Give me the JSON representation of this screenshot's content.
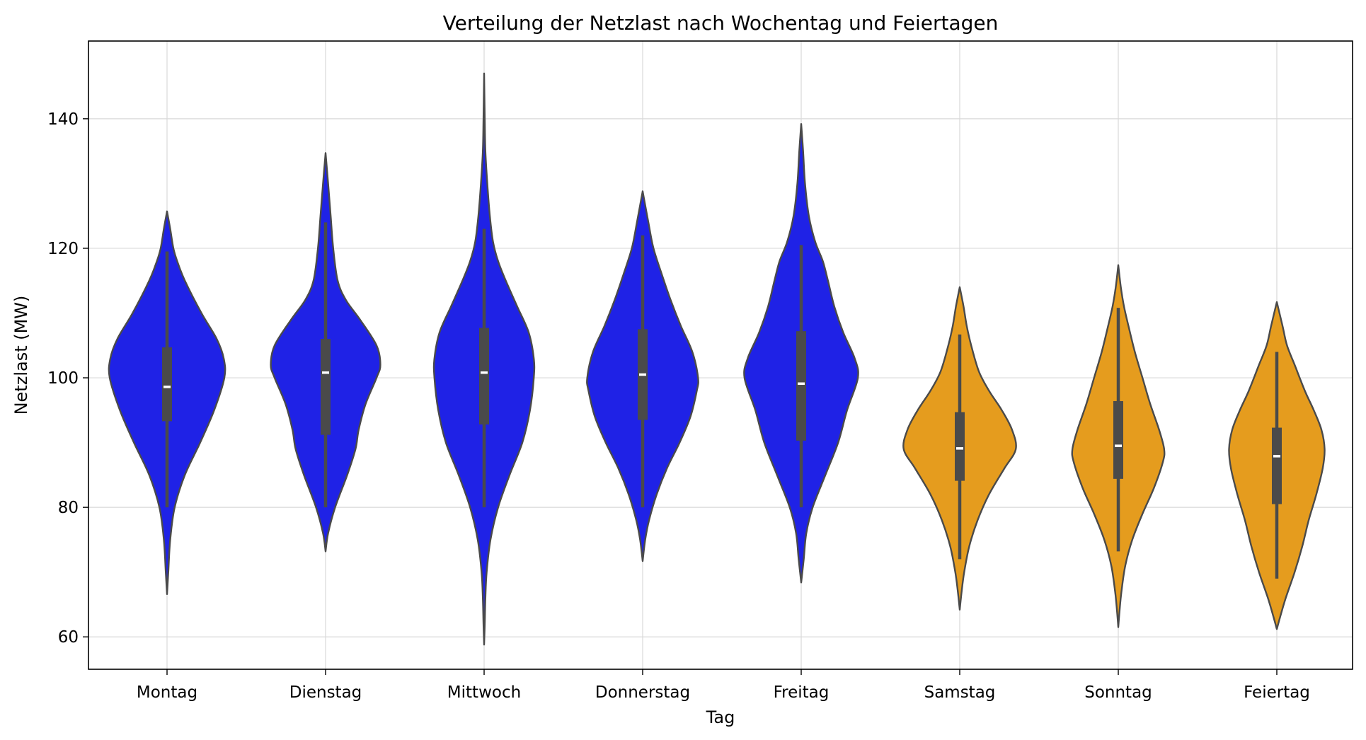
{
  "chart_data": {
    "type": "violin",
    "title": "Verteilung der Netzlast nach Wochentag und Feiertagen",
    "xlabel": "Tag",
    "ylabel": "Netzlast (MW)",
    "ylim": [
      55,
      152
    ],
    "yticks": [
      60,
      80,
      100,
      120,
      140
    ],
    "grid": true,
    "colors": {
      "weekday": "#1f22e6",
      "weekend": "#e59c1e",
      "inner": "#4a4a4a",
      "median": "#ffffff",
      "outline": "#4a4a4a"
    },
    "categories": [
      "Montag",
      "Dienstag",
      "Mittwoch",
      "Donnerstag",
      "Freitag",
      "Samstag",
      "Sonntag",
      "Feiertag"
    ],
    "violins": [
      {
        "name": "Montag",
        "group": "weekday",
        "min": 66.6,
        "max": 125.7,
        "q1": 93.3,
        "median": 98.6,
        "q3": 104.7,
        "whisker_low": 80.0,
        "whisker_high": 119.5,
        "profile": [
          [
            66.6,
            0
          ],
          [
            70,
            2
          ],
          [
            75,
            5
          ],
          [
            80,
            12
          ],
          [
            85,
            28
          ],
          [
            90,
            52
          ],
          [
            95,
            74
          ],
          [
            100,
            90
          ],
          [
            103,
            89
          ],
          [
            106,
            78
          ],
          [
            110,
            54
          ],
          [
            115,
            28
          ],
          [
            118,
            16
          ],
          [
            120,
            10
          ],
          [
            123,
            5
          ],
          [
            125.7,
            0
          ]
        ]
      },
      {
        "name": "Dienstag",
        "group": "weekday",
        "min": 73.2,
        "max": 134.7,
        "q1": 91.2,
        "median": 100.8,
        "q3": 106.0,
        "whisker_low": 80.0,
        "whisker_high": 124.0,
        "profile": [
          [
            73.2,
            0
          ],
          [
            76,
            4
          ],
          [
            80,
            15
          ],
          [
            85,
            34
          ],
          [
            89,
            47
          ],
          [
            92,
            52
          ],
          [
            96,
            63
          ],
          [
            100,
            80
          ],
          [
            102,
            86
          ],
          [
            105,
            80
          ],
          [
            109,
            54
          ],
          [
            112,
            32
          ],
          [
            115,
            19
          ],
          [
            120,
            12
          ],
          [
            125,
            8
          ],
          [
            130,
            4
          ],
          [
            134.7,
            0
          ]
        ]
      },
      {
        "name": "Mittwoch",
        "group": "weekday",
        "min": 58.8,
        "max": 147.0,
        "q1": 92.8,
        "median": 100.8,
        "q3": 107.7,
        "whisker_low": 80.0,
        "whisker_high": 123.0,
        "profile": [
          [
            58.8,
            0
          ],
          [
            62,
            1
          ],
          [
            66,
            2
          ],
          [
            70,
            4
          ],
          [
            75,
            10
          ],
          [
            80,
            22
          ],
          [
            85,
            40
          ],
          [
            90,
            60
          ],
          [
            95,
            72
          ],
          [
            100,
            78
          ],
          [
            103,
            78
          ],
          [
            107,
            70
          ],
          [
            111,
            52
          ],
          [
            115,
            34
          ],
          [
            118,
            22
          ],
          [
            121,
            14
          ],
          [
            125,
            9
          ],
          [
            130,
            5
          ],
          [
            135,
            2
          ],
          [
            140,
            1
          ],
          [
            147,
            0
          ]
        ]
      },
      {
        "name": "Donnerstag",
        "group": "weekday",
        "min": 71.7,
        "max": 128.8,
        "q1": 93.5,
        "median": 100.5,
        "q3": 107.5,
        "whisker_low": 80.0,
        "whisker_high": 122.0,
        "profile": [
          [
            71.7,
            0
          ],
          [
            75,
            4
          ],
          [
            78,
            10
          ],
          [
            82,
            22
          ],
          [
            86,
            38
          ],
          [
            90,
            58
          ],
          [
            94,
            75
          ],
          [
            98,
            85
          ],
          [
            100,
            87
          ],
          [
            104,
            78
          ],
          [
            108,
            60
          ],
          [
            112,
            44
          ],
          [
            116,
            30
          ],
          [
            120,
            17
          ],
          [
            124,
            9
          ],
          [
            128.8,
            0
          ]
        ]
      },
      {
        "name": "Freitag",
        "group": "weekday",
        "min": 68.4,
        "max": 139.2,
        "q1": 90.3,
        "median": 99.1,
        "q3": 107.2,
        "whisker_low": 80.0,
        "whisker_high": 120.5,
        "profile": [
          [
            68.4,
            0
          ],
          [
            72,
            4
          ],
          [
            76,
            8
          ],
          [
            80,
            18
          ],
          [
            85,
            38
          ],
          [
            90,
            58
          ],
          [
            95,
            72
          ],
          [
            100,
            89
          ],
          [
            103,
            84
          ],
          [
            107,
            66
          ],
          [
            111,
            52
          ],
          [
            115,
            42
          ],
          [
            118,
            34
          ],
          [
            121,
            22
          ],
          [
            125,
            12
          ],
          [
            130,
            6
          ],
          [
            135,
            3
          ],
          [
            139.2,
            0
          ]
        ]
      },
      {
        "name": "Samstag",
        "group": "weekend",
        "min": 64.2,
        "max": 114.0,
        "q1": 84.1,
        "median": 89.1,
        "q3": 94.7,
        "whisker_low": 72.0,
        "whisker_high": 106.7,
        "profile": [
          [
            64.2,
            0
          ],
          [
            67,
            3
          ],
          [
            70,
            7
          ],
          [
            74,
            15
          ],
          [
            78,
            28
          ],
          [
            82,
            46
          ],
          [
            86,
            70
          ],
          [
            89,
            88
          ],
          [
            92,
            82
          ],
          [
            95,
            66
          ],
          [
            98,
            46
          ],
          [
            101,
            30
          ],
          [
            105,
            18
          ],
          [
            108,
            11
          ],
          [
            111,
            6
          ],
          [
            114,
            0
          ]
        ]
      },
      {
        "name": "Sonntag",
        "group": "weekend",
        "min": 61.5,
        "max": 117.4,
        "q1": 84.4,
        "median": 89.5,
        "q3": 96.4,
        "whisker_low": 73.2,
        "whisker_high": 110.8,
        "profile": [
          [
            61.5,
            0
          ],
          [
            64,
            2
          ],
          [
            67,
            5
          ],
          [
            71,
            11
          ],
          [
            75,
            22
          ],
          [
            79,
            38
          ],
          [
            83,
            56
          ],
          [
            87,
            70
          ],
          [
            89,
            72
          ],
          [
            92,
            64
          ],
          [
            96,
            50
          ],
          [
            100,
            38
          ],
          [
            104,
            26
          ],
          [
            108,
            16
          ],
          [
            111,
            9
          ],
          [
            114,
            4
          ],
          [
            117.4,
            0
          ]
        ]
      },
      {
        "name": "Feiertag",
        "group": "weekend",
        "min": 61.2,
        "max": 111.7,
        "q1": 80.5,
        "median": 87.9,
        "q3": 92.3,
        "whisker_low": 69.0,
        "whisker_high": 104.0,
        "profile": [
          [
            61.2,
            0
          ],
          [
            63,
            5
          ],
          [
            66,
            14
          ],
          [
            70,
            28
          ],
          [
            74,
            40
          ],
          [
            78,
            50
          ],
          [
            82,
            62
          ],
          [
            86,
            72
          ],
          [
            89,
            75
          ],
          [
            92,
            70
          ],
          [
            95,
            58
          ],
          [
            98,
            44
          ],
          [
            102,
            28
          ],
          [
            105,
            16
          ],
          [
            108,
            9
          ],
          [
            111.7,
            0
          ]
        ]
      }
    ]
  }
}
